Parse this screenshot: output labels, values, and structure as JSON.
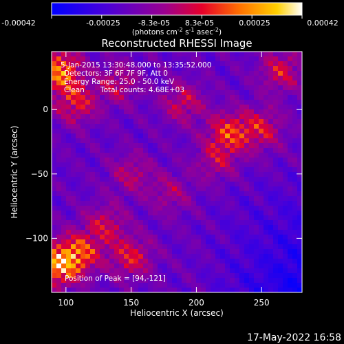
{
  "chart_data": {
    "type": "heatmap",
    "title": "Reconstructed RHESSI Image",
    "xlabel": "Heliocentric X (arcsec)",
    "ylabel": "Heliocentric Y (arcsec)",
    "xlim": [
      89,
      281
    ],
    "ylim": [
      -142,
      45
    ],
    "x_ticks": [
      100,
      150,
      200,
      250
    ],
    "y_ticks": [
      0,
      -50,
      -100
    ],
    "colorbar": {
      "colormap": "IDL color table 3-like: blue - purple - red - orange - yellow - white",
      "range": [
        -0.00042,
        0.00042
      ],
      "ticks": [
        "-0.00042",
        "-0.00025",
        "-8.3e-05",
        "8.3e-05",
        "0.00025",
        "0.00042"
      ],
      "unit_text": "(photons cm",
      "unit_sup1": "-2",
      "unit_mid": " s",
      "unit_sup2": "-1",
      "unit_mid2": " asec",
      "unit_sup3": "-2",
      "unit_end": ")"
    },
    "annotations": [
      "5-Jan-2015 13:30:48.000 to 13:35:52.000",
      "Detectors: 3F 6F 7F 9F, Att 0",
      "Energy Range: 25.0 - 50.0 keV",
      "Clean",
      "Total counts: 4.68E+03",
      "Position of Peak = [94,-121]"
    ],
    "peak_position": [
      94,
      -121
    ],
    "bright_regions": [
      {
        "x": 95,
        "y": 30,
        "level": 0.95
      },
      {
        "x": 108,
        "y": 5,
        "level": 0.6
      },
      {
        "x": 93,
        "y": -121,
        "level": 1.0
      },
      {
        "x": 110,
        "y": -112,
        "level": 0.75
      },
      {
        "x": 150,
        "y": -115,
        "level": 0.6
      },
      {
        "x": 130,
        "y": -90,
        "level": 0.5
      },
      {
        "x": 225,
        "y": -18,
        "level": 0.7
      },
      {
        "x": 250,
        "y": -15,
        "level": 0.55
      },
      {
        "x": 190,
        "y": 5,
        "level": 0.5
      },
      {
        "x": 140,
        "y": 20,
        "level": 0.45
      },
      {
        "x": 265,
        "y": 30,
        "level": 0.55
      },
      {
        "x": 215,
        "y": -40,
        "level": 0.4
      },
      {
        "x": 180,
        "y": -65,
        "level": 0.35
      },
      {
        "x": 150,
        "y": -50,
        "level": 0.4
      }
    ]
  },
  "footer": {
    "timestamp": "17-May-2022 16:58"
  }
}
